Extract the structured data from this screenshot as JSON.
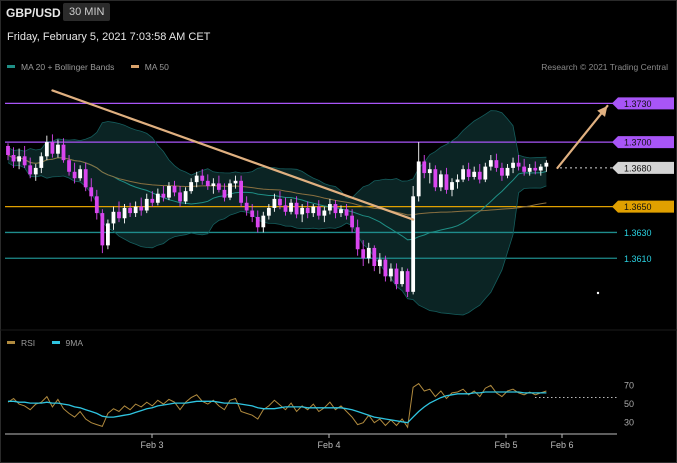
{
  "header": {
    "symbol": "GBP/USD",
    "timeframe": "30 MIN",
    "datetime": "Friday, February 5, 2021 7:03:58 AM CET",
    "copyright": "Research © 2021 Trading Central"
  },
  "legend_price": [
    {
      "label": "MA 20 + Bollinger Bands",
      "color": "#1f8f86"
    },
    {
      "label": "MA 50",
      "color": "#d9a26b"
    }
  ],
  "legend_rsi": [
    {
      "label": "RSI",
      "color": "#b08a3e"
    },
    {
      "label": "9MA",
      "color": "#2fc4e0"
    }
  ],
  "chart_data": [
    {
      "type": "candlestick",
      "series_name": "GBP/USD",
      "x_ticks": [
        "Feb 3",
        "Feb 4",
        "Feb 5",
        "Feb 6"
      ],
      "ylim": [
        1.358,
        1.3745
      ],
      "levels": [
        {
          "value": 1.373,
          "label": "1.3730",
          "color": "#a855f7",
          "tag": "box"
        },
        {
          "value": 1.37,
          "label": "1.3700",
          "color": "#a855f7",
          "tag": "box"
        },
        {
          "value": 1.368,
          "label": "1.3680",
          "color": "#d4d4d4",
          "tag": "box"
        },
        {
          "value": 1.365,
          "label": "1.3650",
          "color": "#e0a000",
          "tag": "box"
        },
        {
          "value": 1.363,
          "label": "1.3630",
          "color": "#1e8c8c",
          "tag": "text"
        },
        {
          "value": 1.361,
          "label": "1.3610",
          "color": "#1e8c8c",
          "tag": "text"
        }
      ],
      "last_price": 1.368,
      "ohlc": [
        [
          1.3697,
          1.3699,
          1.3686,
          1.369
        ],
        [
          1.369,
          1.3696,
          1.368,
          1.3685
        ],
        [
          1.3685,
          1.3695,
          1.3679,
          1.3689
        ],
        [
          1.3689,
          1.3697,
          1.368,
          1.3682
        ],
        [
          1.3682,
          1.3688,
          1.3672,
          1.3675
        ],
        [
          1.3675,
          1.3683,
          1.367,
          1.368
        ],
        [
          1.368,
          1.3692,
          1.3676,
          1.3689
        ],
        [
          1.3689,
          1.3705,
          1.3686,
          1.37
        ],
        [
          1.37,
          1.3706,
          1.3688,
          1.3691
        ],
        [
          1.3691,
          1.3702,
          1.3688,
          1.3698
        ],
        [
          1.3698,
          1.3703,
          1.3684,
          1.3686
        ],
        [
          1.3686,
          1.369,
          1.3674,
          1.3677
        ],
        [
          1.3677,
          1.3684,
          1.3668,
          1.3672
        ],
        [
          1.3672,
          1.3682,
          1.367,
          1.3679
        ],
        [
          1.3679,
          1.3684,
          1.3662,
          1.3665
        ],
        [
          1.3665,
          1.3672,
          1.3654,
          1.3658
        ],
        [
          1.3658,
          1.3663,
          1.364,
          1.3645
        ],
        [
          1.3645,
          1.3648,
          1.3614,
          1.362
        ],
        [
          1.362,
          1.364,
          1.3617,
          1.3637
        ],
        [
          1.3637,
          1.365,
          1.3632,
          1.3646
        ],
        [
          1.3646,
          1.3654,
          1.3638,
          1.3641
        ],
        [
          1.3641,
          1.3652,
          1.3637,
          1.3649
        ],
        [
          1.3649,
          1.3653,
          1.3642,
          1.3645
        ],
        [
          1.3645,
          1.3654,
          1.3642,
          1.365
        ],
        [
          1.365,
          1.3657,
          1.3643,
          1.3647
        ],
        [
          1.3647,
          1.366,
          1.3645,
          1.3656
        ],
        [
          1.3656,
          1.3662,
          1.365,
          1.3653
        ],
        [
          1.3653,
          1.3664,
          1.3651,
          1.366
        ],
        [
          1.366,
          1.3666,
          1.3654,
          1.3657
        ],
        [
          1.3657,
          1.3669,
          1.3655,
          1.3666
        ],
        [
          1.3666,
          1.367,
          1.3658,
          1.3661
        ],
        [
          1.3661,
          1.3666,
          1.365,
          1.3654
        ],
        [
          1.3654,
          1.3665,
          1.3652,
          1.3662
        ],
        [
          1.3662,
          1.3672,
          1.366,
          1.3669
        ],
        [
          1.3669,
          1.3677,
          1.3665,
          1.3674
        ],
        [
          1.3674,
          1.3679,
          1.3667,
          1.367
        ],
        [
          1.367,
          1.3675,
          1.3663,
          1.3666
        ],
        [
          1.3666,
          1.3672,
          1.366,
          1.3668
        ],
        [
          1.3668,
          1.3674,
          1.3661,
          1.3663
        ],
        [
          1.3663,
          1.3668,
          1.3654,
          1.3657
        ],
        [
          1.3657,
          1.3671,
          1.3655,
          1.3668
        ],
        [
          1.3668,
          1.3674,
          1.3664,
          1.367
        ],
        [
          1.367,
          1.3674,
          1.365,
          1.3653
        ],
        [
          1.3653,
          1.3658,
          1.3643,
          1.3647
        ],
        [
          1.3647,
          1.3652,
          1.3638,
          1.3642
        ],
        [
          1.3642,
          1.3647,
          1.363,
          1.3634
        ],
        [
          1.3634,
          1.3646,
          1.363,
          1.3643
        ],
        [
          1.3643,
          1.3652,
          1.364,
          1.3649
        ],
        [
          1.3649,
          1.366,
          1.3646,
          1.3656
        ],
        [
          1.3656,
          1.3662,
          1.3648,
          1.3651
        ],
        [
          1.3651,
          1.3657,
          1.3643,
          1.3646
        ],
        [
          1.3646,
          1.3656,
          1.3644,
          1.3653
        ],
        [
          1.3653,
          1.3658,
          1.3641,
          1.3644
        ],
        [
          1.3644,
          1.3652,
          1.3638,
          1.3649
        ],
        [
          1.3649,
          1.3654,
          1.3641,
          1.3645
        ],
        [
          1.3645,
          1.3652,
          1.3642,
          1.365
        ],
        [
          1.365,
          1.3655,
          1.364,
          1.3643
        ],
        [
          1.3643,
          1.365,
          1.3638,
          1.3647
        ],
        [
          1.3647,
          1.3656,
          1.3644,
          1.3652
        ],
        [
          1.3652,
          1.3655,
          1.3641,
          1.3645
        ],
        [
          1.3645,
          1.3651,
          1.3642,
          1.3648
        ],
        [
          1.3648,
          1.3652,
          1.364,
          1.3643
        ],
        [
          1.3643,
          1.3648,
          1.363,
          1.3634
        ],
        [
          1.3634,
          1.364,
          1.3612,
          1.3617
        ],
        [
          1.3617,
          1.3624,
          1.3604,
          1.361
        ],
        [
          1.361,
          1.3622,
          1.3606,
          1.3618
        ],
        [
          1.3618,
          1.362,
          1.36,
          1.3604
        ],
        [
          1.3604,
          1.3614,
          1.3598,
          1.3609
        ],
        [
          1.3609,
          1.3612,
          1.3592,
          1.3596
        ],
        [
          1.3596,
          1.3606,
          1.3592,
          1.3602
        ],
        [
          1.3602,
          1.3606,
          1.3586,
          1.359
        ],
        [
          1.359,
          1.3603,
          1.3588,
          1.36
        ],
        [
          1.36,
          1.3602,
          1.358,
          1.3584
        ],
        [
          1.3584,
          1.3666,
          1.3582,
          1.3658
        ],
        [
          1.3658,
          1.37,
          1.3654,
          1.3685
        ],
        [
          1.3685,
          1.369,
          1.3672,
          1.3676
        ],
        [
          1.3676,
          1.3684,
          1.3668,
          1.3679
        ],
        [
          1.3679,
          1.3682,
          1.3662,
          1.3665
        ],
        [
          1.3665,
          1.3678,
          1.3662,
          1.3675
        ],
        [
          1.3675,
          1.368,
          1.366,
          1.3663
        ],
        [
          1.3663,
          1.3672,
          1.3658,
          1.3669
        ],
        [
          1.3669,
          1.3675,
          1.3664,
          1.3671
        ],
        [
          1.3671,
          1.3682,
          1.3669,
          1.3679
        ],
        [
          1.3679,
          1.3684,
          1.367,
          1.3673
        ],
        [
          1.3673,
          1.3681,
          1.3671,
          1.3677
        ],
        [
          1.3677,
          1.3683,
          1.3668,
          1.3671
        ],
        [
          1.3671,
          1.3684,
          1.3669,
          1.3681
        ],
        [
          1.3681,
          1.369,
          1.3678,
          1.3686
        ],
        [
          1.3686,
          1.3691,
          1.3677,
          1.368
        ],
        [
          1.368,
          1.3684,
          1.367,
          1.3674
        ],
        [
          1.3674,
          1.3683,
          1.3672,
          1.368
        ],
        [
          1.368,
          1.3688,
          1.3676,
          1.3684
        ],
        [
          1.3684,
          1.369,
          1.3678,
          1.3681
        ],
        [
          1.3681,
          1.3687,
          1.3674,
          1.3677
        ],
        [
          1.3677,
          1.3683,
          1.3674,
          1.368
        ],
        [
          1.368,
          1.3685,
          1.3675,
          1.3678
        ],
        [
          1.3678,
          1.3683,
          1.3674,
          1.3681
        ],
        [
          1.3681,
          1.3686,
          1.3677,
          1.3684
        ]
      ],
      "annotations": [
        {
          "type": "trendline",
          "color": "#e0b080",
          "from": {
            "bar": 8,
            "price": 1.374
          },
          "to": {
            "bar": 73,
            "price": 1.364
          }
        },
        {
          "type": "arrow",
          "color": "#e0b080",
          "from": {
            "bar": 99,
            "price": 1.368
          },
          "to": {
            "bar": 108,
            "price": 1.3728
          }
        }
      ]
    },
    {
      "type": "line",
      "title": "RSI",
      "ylim": [
        20,
        78
      ],
      "y_ticks": [
        70,
        50,
        30
      ],
      "reference_line": 57,
      "series": [
        {
          "name": "RSI",
          "color": "#b08a3e",
          "values": [
            52,
            56,
            50,
            48,
            44,
            50,
            52,
            58,
            47,
            55,
            45,
            40,
            36,
            42,
            34,
            30,
            28,
            26,
            40,
            45,
            42,
            48,
            44,
            50,
            47,
            52,
            48,
            54,
            50,
            55,
            52,
            44,
            52,
            57,
            60,
            53,
            50,
            54,
            48,
            44,
            54,
            56,
            42,
            40,
            38,
            34,
            44,
            48,
            54,
            49,
            44,
            51,
            42,
            48,
            44,
            50,
            42,
            46,
            52,
            44,
            48,
            42,
            36,
            28,
            30,
            38,
            30,
            34,
            27,
            33,
            27,
            34,
            25,
            68,
            72,
            64,
            66,
            58,
            64,
            56,
            62,
            63,
            66,
            60,
            64,
            58,
            67,
            70,
            62,
            58,
            64,
            66,
            62,
            60,
            63,
            60,
            62,
            64
          ]
        },
        {
          "name": "9MA",
          "color": "#2fc4e0",
          "values": [
            53,
            53,
            52,
            52,
            51,
            51,
            51,
            52,
            51,
            51,
            50,
            49,
            47,
            46,
            44,
            42,
            40,
            37,
            36,
            36,
            37,
            38,
            39,
            41,
            43,
            45,
            46,
            48,
            49,
            50,
            51,
            51,
            51,
            52,
            53,
            53,
            53,
            53,
            52,
            51,
            51,
            51,
            50,
            49,
            48,
            46,
            45,
            45,
            45,
            46,
            47,
            47,
            47,
            47,
            46,
            46,
            46,
            46,
            46,
            46,
            46,
            45,
            44,
            42,
            40,
            38,
            36,
            35,
            34,
            33,
            32,
            31,
            30,
            36,
            42,
            47,
            51,
            54,
            57,
            59,
            60,
            61,
            61,
            61,
            62,
            62,
            63,
            63,
            63,
            63,
            63,
            63,
            63,
            62,
            62,
            62,
            62,
            62
          ]
        }
      ],
      "x_ticks": [
        "Feb 3",
        "Feb 4",
        "Feb 5",
        "Feb 6"
      ]
    }
  ]
}
